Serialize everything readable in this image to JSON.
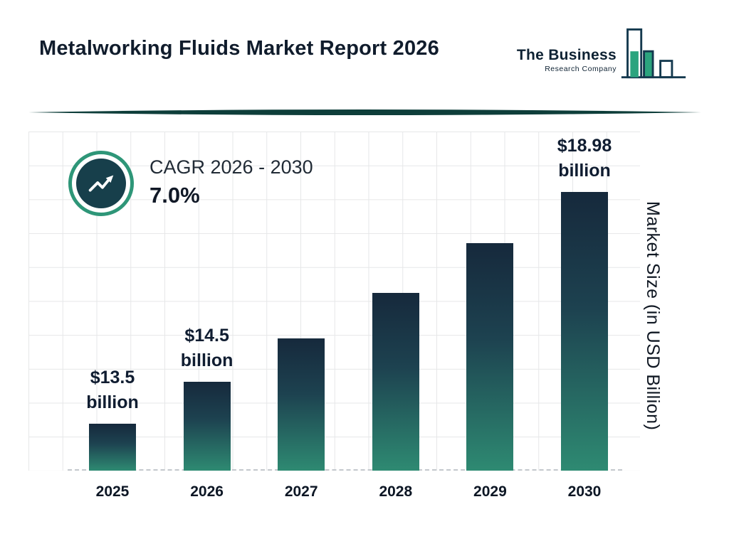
{
  "header": {
    "title": "Metalworking Fluids Market Report 2026",
    "logo": {
      "line1": "The Business",
      "line2": "Research Company"
    }
  },
  "cagr": {
    "label": "CAGR 2026 - 2030",
    "value": "7.0%"
  },
  "chart_data": {
    "type": "bar",
    "title": "Metalworking Fluids Market Report 2026",
    "categories": [
      "2025",
      "2026",
      "2027",
      "2028",
      "2029",
      "2030"
    ],
    "values": [
      13.5,
      14.5,
      15.52,
      16.6,
      17.76,
      18.98
    ],
    "bar_labels": [
      "$13.5 billion",
      "$14.5 billion",
      "",
      "",
      "",
      "$18.98 billion"
    ],
    "xlabel": "",
    "ylabel": "Market Size (in USD Billion)",
    "ylim": [
      12.4,
      20.4
    ],
    "grid": true,
    "baseline_style": "dashed",
    "legend": "none"
  },
  "colors": {
    "accent_teal": "#2E9678",
    "dark_navy": "#16293C",
    "bar_gradient_top": "#16293C",
    "bar_gradient_bottom": "#2E8A72",
    "badge_inner": "#173F4B",
    "divider": "#0E3E3A",
    "grid": "#E6E7E8",
    "logo_teal": "#2BA47E",
    "logo_outline": "#14394E"
  }
}
